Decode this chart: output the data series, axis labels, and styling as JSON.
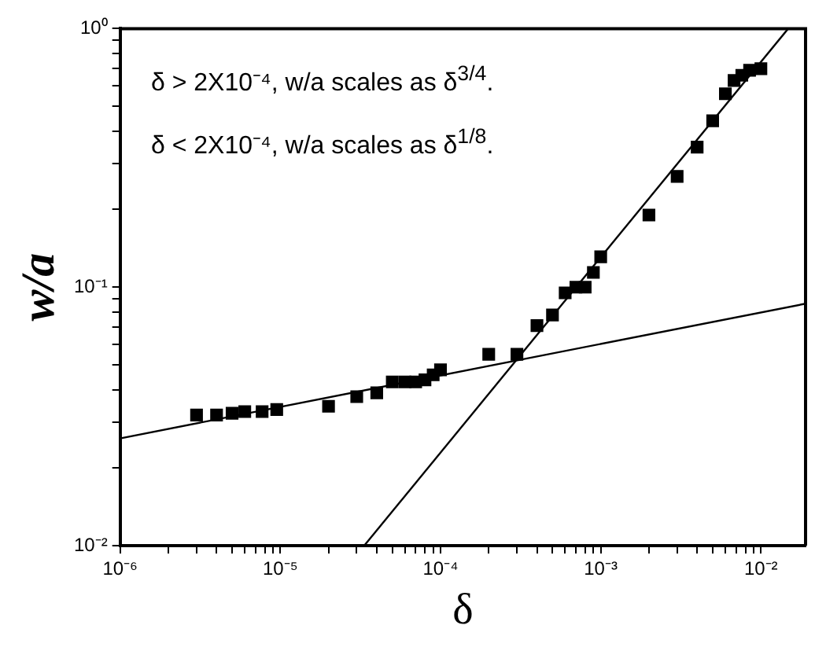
{
  "chart_data": {
    "type": "scatter",
    "xlabel": "δ",
    "ylabel": "w/a",
    "log": "xy",
    "marker": "square",
    "legend": false,
    "grid": false,
    "annotations": [
      "δ > 2X10⁻⁴, w/a scales as δ$^{3/4}$.",
      "δ < 2X10⁻⁴, w/a scales as δ$^{1/8}$."
    ],
    "xlim": [
      1e-06,
      0.019
    ],
    "ylim": [
      0.01,
      1
    ],
    "xticks": [
      {
        "value": 1e-06,
        "label": "10⁻⁶"
      },
      {
        "value": 2e-06,
        "label": null
      },
      {
        "value": 3e-06,
        "label": null
      },
      {
        "value": 4e-06,
        "label": null
      },
      {
        "value": 5e-06,
        "label": null
      },
      {
        "value": 6e-06,
        "label": null
      },
      {
        "value": 7e-06,
        "label": null
      },
      {
        "value": 8e-06,
        "label": null
      },
      {
        "value": 9e-06,
        "label": null
      },
      {
        "value": 1e-05,
        "label": "10⁻⁵"
      },
      {
        "value": 2e-05,
        "label": null
      },
      {
        "value": 3e-05,
        "label": null
      },
      {
        "value": 4e-05,
        "label": null
      },
      {
        "value": 5e-05,
        "label": null
      },
      {
        "value": 6e-05,
        "label": null
      },
      {
        "value": 7e-05,
        "label": null
      },
      {
        "value": 8e-05,
        "label": null
      },
      {
        "value": 9e-05,
        "label": null
      },
      {
        "value": 0.0001,
        "label": "10⁻⁴"
      },
      {
        "value": 0.0002,
        "label": null
      },
      {
        "value": 0.0003,
        "label": null
      },
      {
        "value": 0.0004,
        "label": null
      },
      {
        "value": 0.0005,
        "label": null
      },
      {
        "value": 0.0006,
        "label": null
      },
      {
        "value": 0.0007,
        "label": null
      },
      {
        "value": 0.0008,
        "label": null
      },
      {
        "value": 0.0009,
        "label": null
      },
      {
        "value": 0.001,
        "label": "10⁻³"
      },
      {
        "value": 0.002,
        "label": null
      },
      {
        "value": 0.003,
        "label": null
      },
      {
        "value": 0.004,
        "label": null
      },
      {
        "value": 0.005,
        "label": null
      },
      {
        "value": 0.006,
        "label": null
      },
      {
        "value": 0.007,
        "label": null
      },
      {
        "value": 0.008,
        "label": null
      },
      {
        "value": 0.009,
        "label": null
      },
      {
        "value": 0.01,
        "label": "10⁻²"
      }
    ],
    "yticks": [
      {
        "value": 0.01,
        "label": "10⁻²"
      },
      {
        "value": 0.02,
        "label": null
      },
      {
        "value": 0.03,
        "label": null
      },
      {
        "value": 0.04,
        "label": null
      },
      {
        "value": 0.05,
        "label": null
      },
      {
        "value": 0.06,
        "label": null
      },
      {
        "value": 0.07,
        "label": null
      },
      {
        "value": 0.08,
        "label": null
      },
      {
        "value": 0.09,
        "label": null
      },
      {
        "value": 0.1,
        "label": "10⁻¹"
      },
      {
        "value": 0.2,
        "label": null
      },
      {
        "value": 0.3,
        "label": null
      },
      {
        "value": 0.4,
        "label": null
      },
      {
        "value": 0.5,
        "label": null
      },
      {
        "value": 0.6,
        "label": null
      },
      {
        "value": 0.7,
        "label": null
      },
      {
        "value": 0.8,
        "label": null
      },
      {
        "value": 0.9,
        "label": null
      },
      {
        "value": 1,
        "label": "10⁰"
      }
    ],
    "series": [
      {
        "type": "scatter",
        "color": "#000000",
        "x": [
          3e-06,
          4e-06,
          5e-06,
          6e-06,
          7.7e-06,
          9.5e-06,
          2e-05,
          3e-05,
          4e-05,
          5e-05,
          6e-05,
          7e-05,
          8e-05,
          9e-05,
          0.0001,
          0.0002,
          0.0003,
          0.0004,
          0.0005,
          0.0006,
          0.0007,
          0.0008,
          0.0009,
          0.001,
          0.002,
          0.003,
          0.004,
          0.005,
          0.006,
          0.0068,
          0.0076,
          0.0085,
          0.01
        ],
        "values": [
          0.032,
          0.032,
          0.0325,
          0.033,
          0.033,
          0.0336,
          0.0346,
          0.0377,
          0.039,
          0.043,
          0.043,
          0.043,
          0.0438,
          0.0458,
          0.0479,
          0.055,
          0.055,
          0.071,
          0.078,
          0.095,
          0.1,
          0.1,
          0.114,
          0.131,
          0.19,
          0.268,
          0.348,
          0.44,
          0.56,
          0.63,
          0.66,
          0.69,
          0.7
        ]
      },
      {
        "type": "line",
        "color": "#000000",
        "marker": "none",
        "x": [
          1e-06,
          0.019
        ],
        "values": [
          0.026,
          0.0863
        ]
      },
      {
        "type": "line",
        "color": "#000000",
        "marker": "none",
        "x": [
          3.34e-05,
          0.0148
        ],
        "values": [
          0.01,
          1
        ]
      }
    ]
  }
}
